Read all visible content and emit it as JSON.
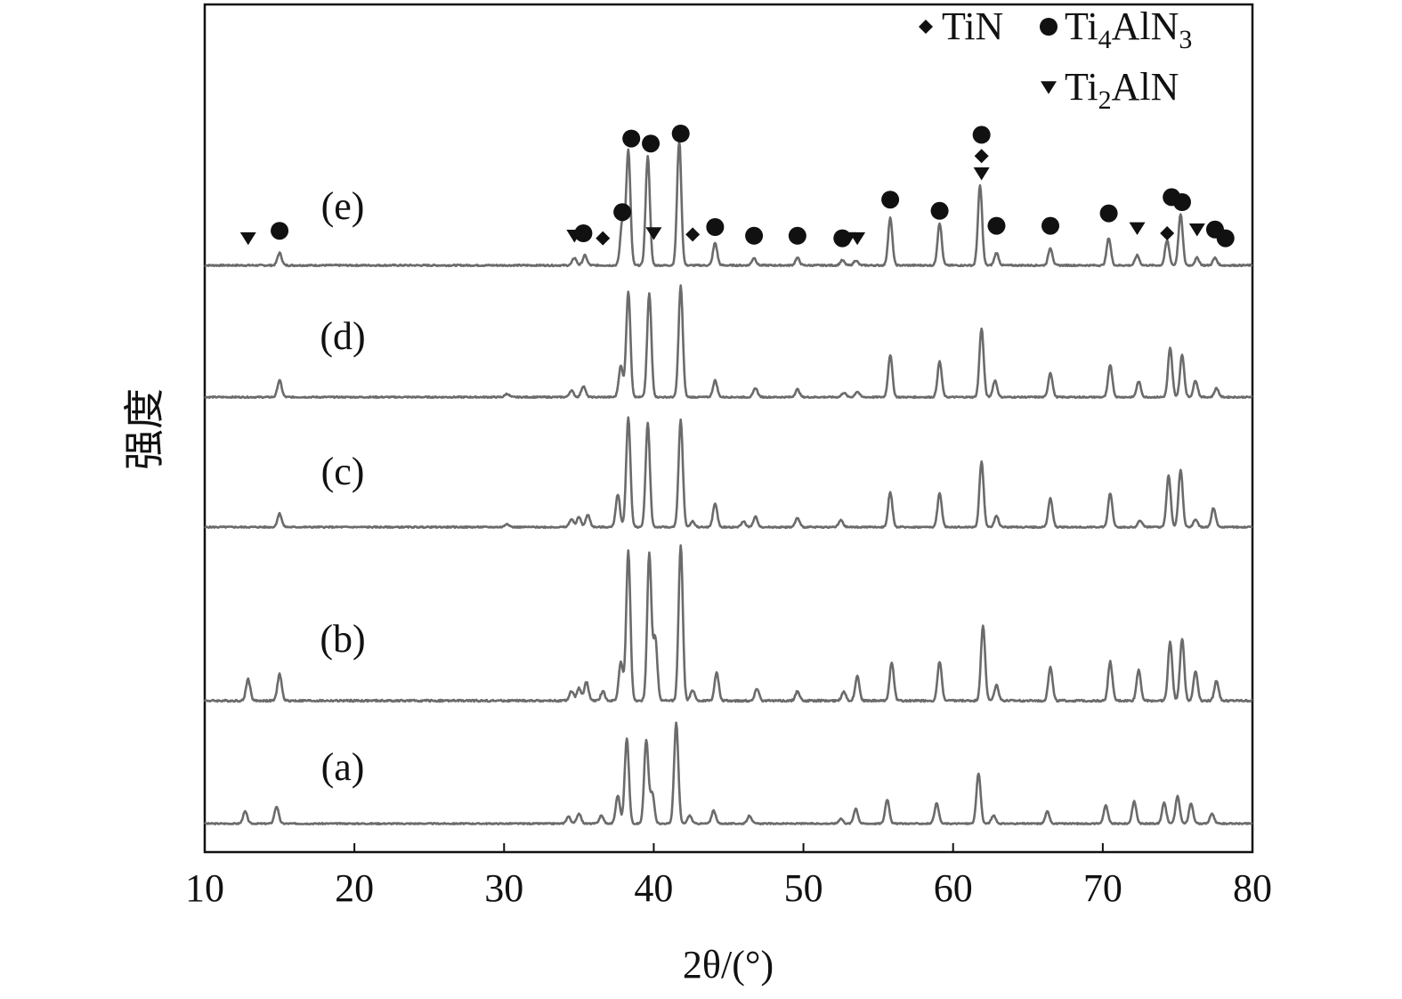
{
  "chart_data": {
    "type": "line",
    "title": "",
    "xlabel": "2θ/(°)",
    "ylabel": "强度",
    "xlim": [
      10,
      80
    ],
    "xticks": [
      "10",
      "20",
      "30",
      "40",
      "50",
      "60",
      "70",
      "80"
    ],
    "grid": false,
    "legend": {
      "placement": "top-right",
      "entries": [
        {
          "marker": "diamond",
          "text": "TiN"
        },
        {
          "marker": "circle",
          "text": "Ti",
          "sub": "4",
          "text2": "AlN",
          "sub2": "3"
        },
        {
          "marker": "triangle-down",
          "text": "Ti",
          "sub": "2",
          "text2": "AlN",
          "sub2": ""
        }
      ]
    },
    "colors": {
      "curve": "#6b6b6b",
      "axis": "#111111",
      "marker": "#111111"
    },
    "series": [
      {
        "name": "(a)",
        "peaks": [
          [
            12.7,
            0.12
          ],
          [
            14.8,
            0.17
          ],
          [
            34.3,
            0.07
          ],
          [
            35.0,
            0.1
          ],
          [
            36.5,
            0.08
          ],
          [
            37.6,
            0.28
          ],
          [
            38.2,
            0.85
          ],
          [
            39.5,
            0.83
          ],
          [
            39.9,
            0.3
          ],
          [
            41.5,
            1.0
          ],
          [
            42.4,
            0.08
          ],
          [
            44.0,
            0.13
          ],
          [
            46.4,
            0.08
          ],
          [
            52.5,
            0.05
          ],
          [
            53.5,
            0.15
          ],
          [
            55.6,
            0.24
          ],
          [
            58.9,
            0.2
          ],
          [
            61.7,
            0.5
          ],
          [
            62.7,
            0.08
          ],
          [
            66.3,
            0.12
          ],
          [
            70.2,
            0.18
          ],
          [
            72.1,
            0.22
          ],
          [
            74.1,
            0.21
          ],
          [
            75.0,
            0.27
          ],
          [
            75.9,
            0.2
          ],
          [
            77.3,
            0.1
          ]
        ]
      },
      {
        "name": "(b)",
        "peaks": [
          [
            12.9,
            0.14
          ],
          [
            15.0,
            0.17
          ],
          [
            34.5,
            0.06
          ],
          [
            35.0,
            0.08
          ],
          [
            35.5,
            0.12
          ],
          [
            36.6,
            0.06
          ],
          [
            37.8,
            0.25
          ],
          [
            38.3,
            0.96
          ],
          [
            39.7,
            0.94
          ],
          [
            40.1,
            0.4
          ],
          [
            41.8,
            1.0
          ],
          [
            42.6,
            0.07
          ],
          [
            44.2,
            0.18
          ],
          [
            46.9,
            0.08
          ],
          [
            49.6,
            0.06
          ],
          [
            52.7,
            0.06
          ],
          [
            53.6,
            0.16
          ],
          [
            55.9,
            0.25
          ],
          [
            59.1,
            0.25
          ],
          [
            62.0,
            0.48
          ],
          [
            62.9,
            0.1
          ],
          [
            66.5,
            0.22
          ],
          [
            70.5,
            0.25
          ],
          [
            72.4,
            0.2
          ],
          [
            74.5,
            0.38
          ],
          [
            75.3,
            0.4
          ],
          [
            76.2,
            0.19
          ],
          [
            77.6,
            0.13
          ]
        ]
      },
      {
        "name": "(c)",
        "peaks": [
          [
            15.0,
            0.12
          ],
          [
            30.2,
            0.03
          ],
          [
            34.5,
            0.07
          ],
          [
            35.0,
            0.09
          ],
          [
            35.6,
            0.11
          ],
          [
            37.6,
            0.29
          ],
          [
            38.3,
            0.97
          ],
          [
            39.6,
            0.92
          ],
          [
            41.8,
            0.95
          ],
          [
            42.6,
            0.05
          ],
          [
            44.1,
            0.21
          ],
          [
            46.0,
            0.05
          ],
          [
            46.8,
            0.09
          ],
          [
            49.6,
            0.08
          ],
          [
            52.5,
            0.06
          ],
          [
            55.8,
            0.31
          ],
          [
            59.1,
            0.3
          ],
          [
            61.9,
            0.58
          ],
          [
            62.9,
            0.1
          ],
          [
            66.5,
            0.26
          ],
          [
            70.5,
            0.3
          ],
          [
            72.5,
            0.06
          ],
          [
            74.4,
            0.46
          ],
          [
            75.2,
            0.51
          ],
          [
            76.2,
            0.07
          ],
          [
            77.4,
            0.17
          ]
        ]
      },
      {
        "name": "(d)",
        "peaks": [
          [
            15.0,
            0.15
          ],
          [
            30.2,
            0.03
          ],
          [
            34.5,
            0.06
          ],
          [
            35.3,
            0.1
          ],
          [
            37.8,
            0.28
          ],
          [
            38.3,
            0.95
          ],
          [
            39.7,
            0.93
          ],
          [
            41.8,
            1.0
          ],
          [
            44.1,
            0.15
          ],
          [
            46.8,
            0.08
          ],
          [
            49.6,
            0.07
          ],
          [
            52.7,
            0.04
          ],
          [
            53.6,
            0.05
          ],
          [
            55.8,
            0.38
          ],
          [
            59.1,
            0.32
          ],
          [
            61.9,
            0.62
          ],
          [
            62.8,
            0.15
          ],
          [
            66.5,
            0.22
          ],
          [
            70.5,
            0.29
          ],
          [
            72.4,
            0.14
          ],
          [
            74.5,
            0.44
          ],
          [
            75.3,
            0.38
          ],
          [
            76.2,
            0.15
          ],
          [
            77.6,
            0.08
          ]
        ]
      },
      {
        "name": "(e)",
        "peaks": [
          [
            15.0,
            0.1
          ],
          [
            34.7,
            0.06
          ],
          [
            35.4,
            0.08
          ],
          [
            37.9,
            0.35
          ],
          [
            38.3,
            0.92
          ],
          [
            39.6,
            0.88
          ],
          [
            41.7,
            1.0
          ],
          [
            44.1,
            0.18
          ],
          [
            46.7,
            0.06
          ],
          [
            49.6,
            0.06
          ],
          [
            52.6,
            0.04
          ],
          [
            53.5,
            0.04
          ],
          [
            55.8,
            0.38
          ],
          [
            59.1,
            0.34
          ],
          [
            61.8,
            0.64
          ],
          [
            62.9,
            0.1
          ],
          [
            66.5,
            0.14
          ],
          [
            70.4,
            0.22
          ],
          [
            72.3,
            0.08
          ],
          [
            74.3,
            0.2
          ],
          [
            75.2,
            0.41
          ],
          [
            76.3,
            0.06
          ],
          [
            77.5,
            0.06
          ]
        ]
      }
    ],
    "phase_markers": [
      {
        "x": 12.9,
        "y": 0.16,
        "type": "triangle-down"
      },
      {
        "x": 15.0,
        "y": 0.22,
        "type": "circle"
      },
      {
        "x": 34.7,
        "y": 0.18,
        "type": "triangle-down"
      },
      {
        "x": 35.3,
        "y": 0.2,
        "type": "circle"
      },
      {
        "x": 36.6,
        "y": 0.16,
        "type": "diamond"
      },
      {
        "x": 37.9,
        "y": 0.37,
        "type": "circle"
      },
      {
        "x": 38.5,
        "y": 0.96,
        "type": "circle"
      },
      {
        "x": 39.8,
        "y": 0.92,
        "type": "circle"
      },
      {
        "x": 40.0,
        "y": 0.2,
        "type": "triangle-down"
      },
      {
        "x": 41.8,
        "y": 1.0,
        "type": "circle"
      },
      {
        "x": 42.6,
        "y": 0.19,
        "type": "diamond"
      },
      {
        "x": 44.1,
        "y": 0.25,
        "type": "circle"
      },
      {
        "x": 46.7,
        "y": 0.18,
        "type": "circle"
      },
      {
        "x": 49.6,
        "y": 0.18,
        "type": "circle"
      },
      {
        "x": 52.6,
        "y": 0.16,
        "type": "circle"
      },
      {
        "x": 53.0,
        "y": 0.16,
        "type": "triangle-down"
      },
      {
        "x": 53.6,
        "y": 0.16,
        "type": "triangle-down"
      },
      {
        "x": 55.8,
        "y": 0.47,
        "type": "circle"
      },
      {
        "x": 59.1,
        "y": 0.38,
        "type": "circle"
      },
      {
        "x": 61.9,
        "y": 0.68,
        "type": "triangle-down"
      },
      {
        "x": 61.9,
        "y": 0.82,
        "type": "diamond"
      },
      {
        "x": 61.9,
        "y": 0.99,
        "type": "circle"
      },
      {
        "x": 62.9,
        "y": 0.26,
        "type": "circle"
      },
      {
        "x": 66.5,
        "y": 0.26,
        "type": "circle"
      },
      {
        "x": 70.4,
        "y": 0.36,
        "type": "circle"
      },
      {
        "x": 72.3,
        "y": 0.24,
        "type": "triangle-down"
      },
      {
        "x": 74.3,
        "y": 0.2,
        "type": "diamond"
      },
      {
        "x": 74.6,
        "y": 0.49,
        "type": "circle"
      },
      {
        "x": 75.3,
        "y": 0.45,
        "type": "circle"
      },
      {
        "x": 76.3,
        "y": 0.23,
        "type": "triangle-down"
      },
      {
        "x": 77.5,
        "y": 0.23,
        "type": "circle"
      },
      {
        "x": 78.2,
        "y": 0.16,
        "type": "circle"
      }
    ]
  }
}
